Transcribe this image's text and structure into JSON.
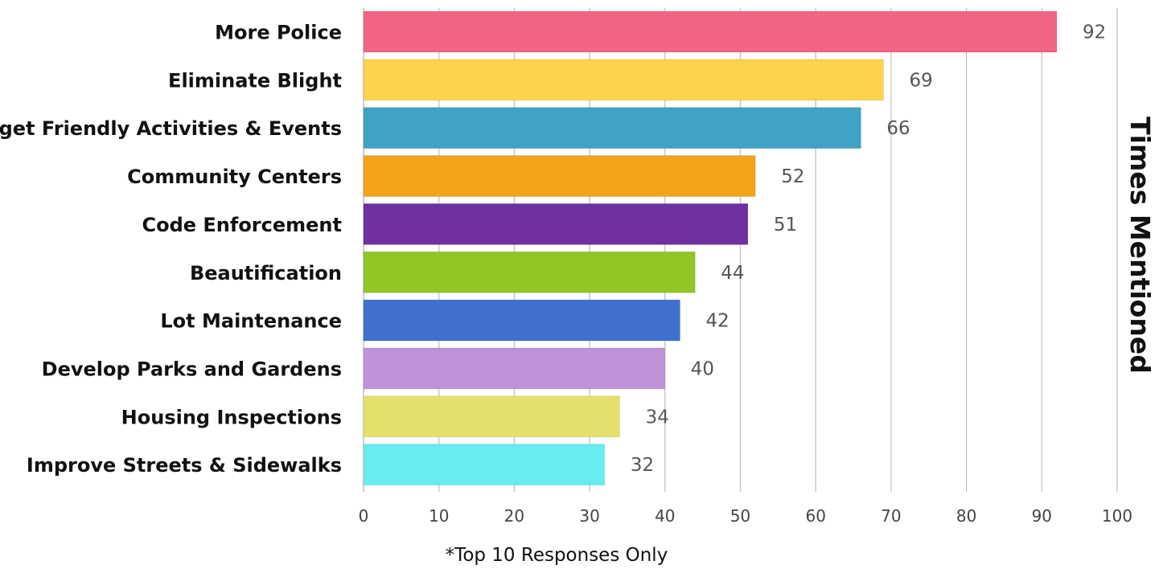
{
  "chart_data": {
    "type": "bar",
    "orientation": "horizontal",
    "categories": [
      "More Police",
      "Eliminate Blight",
      "Budget Friendly Activities & Events",
      "Community Centers",
      "Code Enforcement",
      "Beautification",
      "Lot Maintenance",
      "Develop Parks and Gardens",
      "Housing Inspections",
      "Improve Streets & Sidewalks"
    ],
    "values": [
      92,
      69,
      66,
      52,
      51,
      44,
      42,
      40,
      34,
      32
    ],
    "colors": [
      "#f26484",
      "#fdd34c",
      "#40a2c4",
      "#f4a41b",
      "#7030a0",
      "#92c624",
      "#3f6fcf",
      "#c092da",
      "#e4e06c",
      "#68eced"
    ],
    "xlim": [
      0,
      100
    ],
    "xticks": [
      0,
      10,
      20,
      30,
      40,
      50,
      60,
      70,
      80,
      90,
      100
    ],
    "ylabel": "Times Mentioned",
    "grid": true,
    "data_labels": true,
    "footnote": "*Top 10 Responses Only"
  }
}
